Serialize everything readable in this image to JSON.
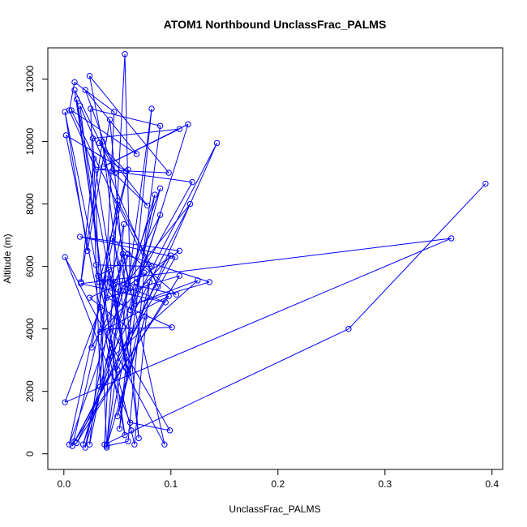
{
  "chart_data": {
    "type": "line",
    "title": "ATOM1 Northbound UnclassFrac_PALMS",
    "xlabel": "UnclassFrac_PALMS",
    "ylabel": "Altitude (m)",
    "xlim": [
      -0.015,
      0.41
    ],
    "ylim": [
      -500,
      13000
    ],
    "x_ticks": [
      0.0,
      0.1,
      0.2,
      0.3,
      0.4
    ],
    "x_tick_labels": [
      "0.0",
      "0.1",
      "0.2",
      "0.3",
      "0.4"
    ],
    "y_ticks": [
      0,
      2000,
      4000,
      6000,
      8000,
      10000,
      12000
    ],
    "y_tick_labels": [
      "0",
      "2000",
      "4000",
      "6000",
      "8000",
      "10000",
      "12000"
    ],
    "grid": false,
    "series": [
      {
        "color": "#0000ff",
        "marker": "open-circle",
        "points": [
          [
            0.394,
            8650
          ],
          [
            0.266,
            4000
          ],
          [
            0.038,
            300
          ],
          [
            0.057,
            12800
          ],
          [
            0.062,
            5300
          ],
          [
            0.024,
            12100
          ],
          [
            0.098,
            9000
          ],
          [
            0.03,
            9100
          ],
          [
            0.005,
            11000
          ],
          [
            0.01,
            11900
          ],
          [
            0.047,
            10950
          ],
          [
            0.034,
            2150
          ],
          [
            0.025,
            11050
          ],
          [
            0.09,
            10500
          ],
          [
            0.052,
            800
          ],
          [
            0.082,
            11050
          ],
          [
            0.04,
            300
          ],
          [
            0.027,
            10100
          ],
          [
            0.108,
            10400
          ],
          [
            0.037,
            9200
          ],
          [
            0.116,
            10550
          ],
          [
            0.062,
            4600
          ],
          [
            0.143,
            9950
          ],
          [
            0.05,
            2700
          ],
          [
            0.001,
            10950
          ],
          [
            0.022,
            6500
          ],
          [
            0.043,
            10700
          ],
          [
            0.07,
            500
          ],
          [
            0.036,
            10000
          ],
          [
            0.016,
            5500
          ],
          [
            0.028,
            9450
          ],
          [
            0.06,
            2550
          ],
          [
            0.012,
            11350
          ],
          [
            0.036,
            5500
          ],
          [
            0.015,
            11150
          ],
          [
            0.088,
            5350
          ],
          [
            0.007,
            11000
          ],
          [
            0.068,
            9600
          ],
          [
            0.02,
            11650
          ],
          [
            0.048,
            9000
          ],
          [
            0.01,
            11650
          ],
          [
            0.057,
            600
          ],
          [
            0.002,
            10200
          ],
          [
            0.058,
            9050
          ],
          [
            0.033,
            9950
          ],
          [
            0.078,
            7950
          ],
          [
            0.045,
            9050
          ],
          [
            0.12,
            8700
          ],
          [
            0.068,
            5500
          ],
          [
            0.09,
            8500
          ],
          [
            0.005,
            300
          ],
          [
            0.06,
            9100
          ],
          [
            0.033,
            5500
          ],
          [
            0.03,
            6050
          ],
          [
            0.082,
            6000
          ],
          [
            0.05,
            8100
          ],
          [
            0.026,
            3400
          ],
          [
            0.09,
            7650
          ],
          [
            0.018,
            300
          ],
          [
            0.085,
            8300
          ],
          [
            0.04,
            200
          ],
          [
            0.056,
            7350
          ],
          [
            0.008,
            250
          ],
          [
            0.1,
            6350
          ],
          [
            0.034,
            3900
          ],
          [
            0.098,
            5050
          ],
          [
            0.01,
            400
          ],
          [
            0.104,
            6300
          ],
          [
            0.015,
            6950
          ],
          [
            0.108,
            6500
          ],
          [
            0.052,
            5200
          ],
          [
            0.118,
            8000
          ],
          [
            0.042,
            3000
          ],
          [
            0.125,
            5550
          ],
          [
            0.066,
            4800
          ],
          [
            0.136,
            5500
          ],
          [
            0.055,
            6400
          ],
          [
            0.094,
            300
          ],
          [
            0.001,
            6300
          ],
          [
            0.062,
            1000
          ],
          [
            0.099,
            750
          ],
          [
            0.044,
            4000
          ],
          [
            0.101,
            4050
          ],
          [
            0.04,
            5000
          ],
          [
            0.108,
            5700
          ],
          [
            0.012,
            350
          ],
          [
            0.063,
            3950
          ],
          [
            0.024,
            5000
          ],
          [
            0.075,
            5800
          ],
          [
            0.06,
            400
          ],
          [
            0.04,
            250
          ],
          [
            0.076,
            4400
          ],
          [
            0.05,
            1200
          ],
          [
            0.08,
            5500
          ],
          [
            0.066,
            300
          ],
          [
            0.063,
            750
          ],
          [
            0.034,
            4700
          ],
          [
            0.001,
            1650
          ],
          [
            0.362,
            6900
          ],
          [
            0.016,
            5450
          ],
          [
            0.095,
            4850
          ],
          [
            0.04,
            5600
          ],
          [
            0.105,
            5100
          ],
          [
            0.045,
            6900
          ],
          [
            0.06,
            5200
          ],
          [
            0.02,
            200
          ],
          [
            0.053,
            6100
          ],
          [
            0.032,
            5700
          ],
          [
            0.05,
            4800
          ],
          [
            0.042,
            5900
          ],
          [
            0.024,
            300
          ],
          [
            0.06,
            6400
          ],
          [
            0.046,
            5400
          ],
          [
            0.058,
            2750
          ],
          [
            0.044,
            5450
          ]
        ]
      }
    ]
  }
}
